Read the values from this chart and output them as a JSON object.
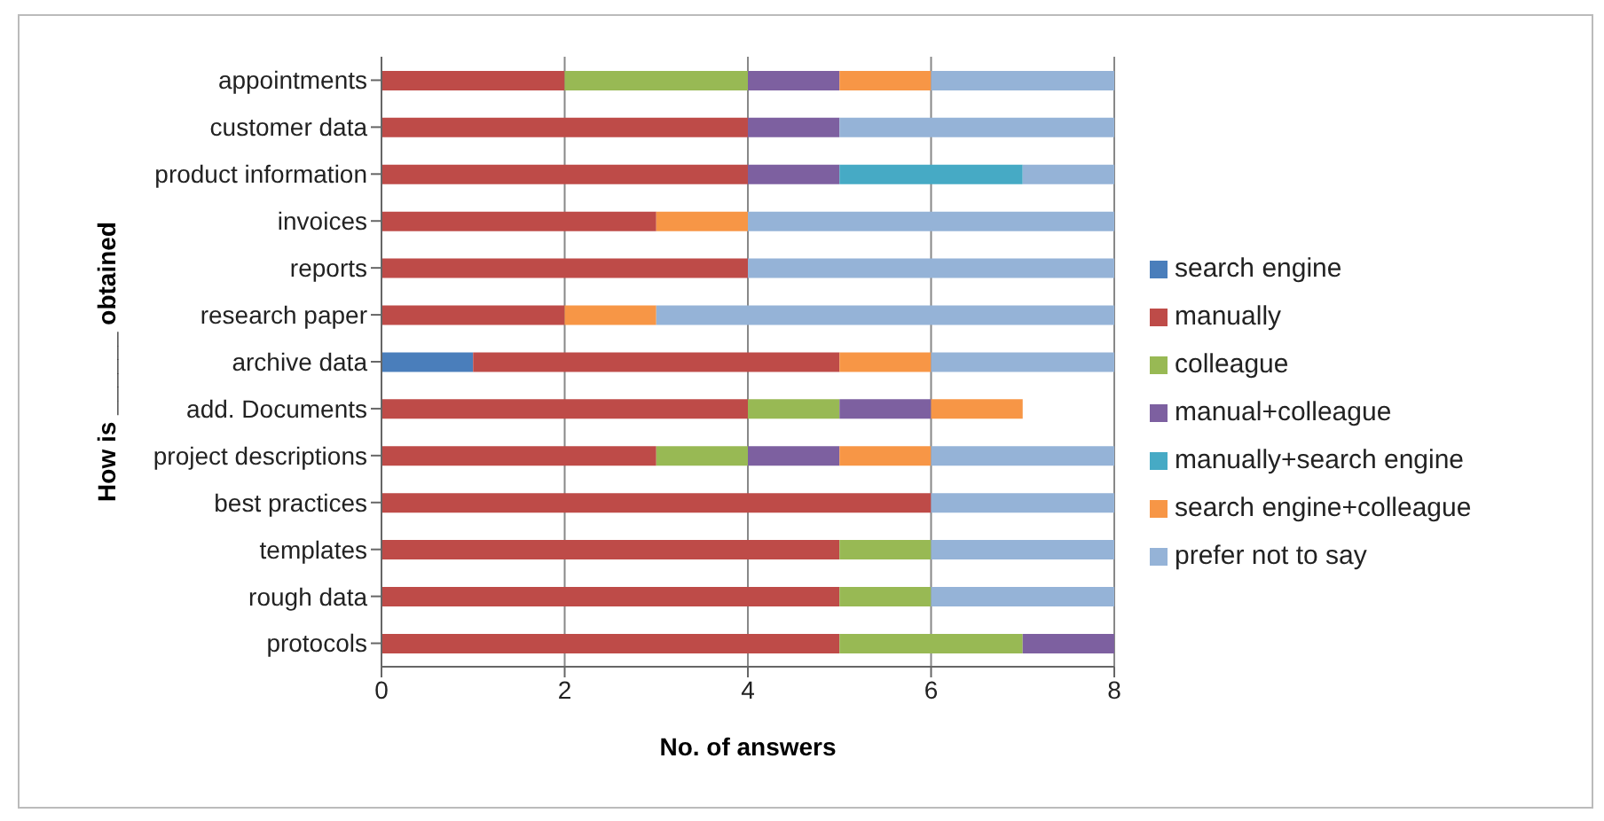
{
  "chart_data": {
    "type": "bar",
    "orientation": "horizontal",
    "stacked": true,
    "xlabel": "No. of answers",
    "ylabel": "How is ______ obtained",
    "categories": [
      "appointments",
      "customer data",
      "product information",
      "invoices",
      "reports",
      "research paper",
      "archive data",
      "add. Documents",
      "project descriptions",
      "best practices",
      "templates",
      "rough data",
      "protocols"
    ],
    "series": [
      {
        "name": "search engine",
        "color": "#4a7ebb",
        "values": [
          null,
          null,
          null,
          null,
          null,
          null,
          1,
          null,
          null,
          null,
          null,
          null,
          null
        ]
      },
      {
        "name": "manually",
        "color": "#be4b48",
        "values": [
          2,
          4,
          4,
          3,
          4,
          2,
          4,
          4,
          3,
          6,
          5,
          5,
          5
        ]
      },
      {
        "name": "colleague",
        "color": "#98b954",
        "values": [
          2,
          null,
          null,
          null,
          null,
          null,
          null,
          1,
          1,
          null,
          1,
          1,
          2
        ]
      },
      {
        "name": "manual+colleague",
        "color": "#7d60a0",
        "values": [
          1,
          1,
          1,
          null,
          null,
          null,
          null,
          1,
          1,
          null,
          null,
          null,
          1
        ]
      },
      {
        "name": "manually+search engine",
        "color": "#46aac5",
        "values": [
          null,
          null,
          2,
          null,
          null,
          null,
          null,
          null,
          null,
          null,
          null,
          null,
          null
        ]
      },
      {
        "name": "search engine+colleague",
        "color": "#f79646",
        "values": [
          1,
          null,
          null,
          1,
          null,
          1,
          1,
          1,
          1,
          null,
          null,
          null,
          null
        ]
      },
      {
        "name": "prefer not to say",
        "color": "#95b3d7",
        "values": [
          2,
          3,
          1,
          4,
          4,
          5,
          2,
          null,
          2,
          2,
          2,
          2,
          null
        ]
      }
    ],
    "xlim": [
      0,
      8
    ],
    "xticks": [
      0,
      2,
      4,
      6,
      8
    ],
    "grid": "x",
    "legend": "right"
  }
}
